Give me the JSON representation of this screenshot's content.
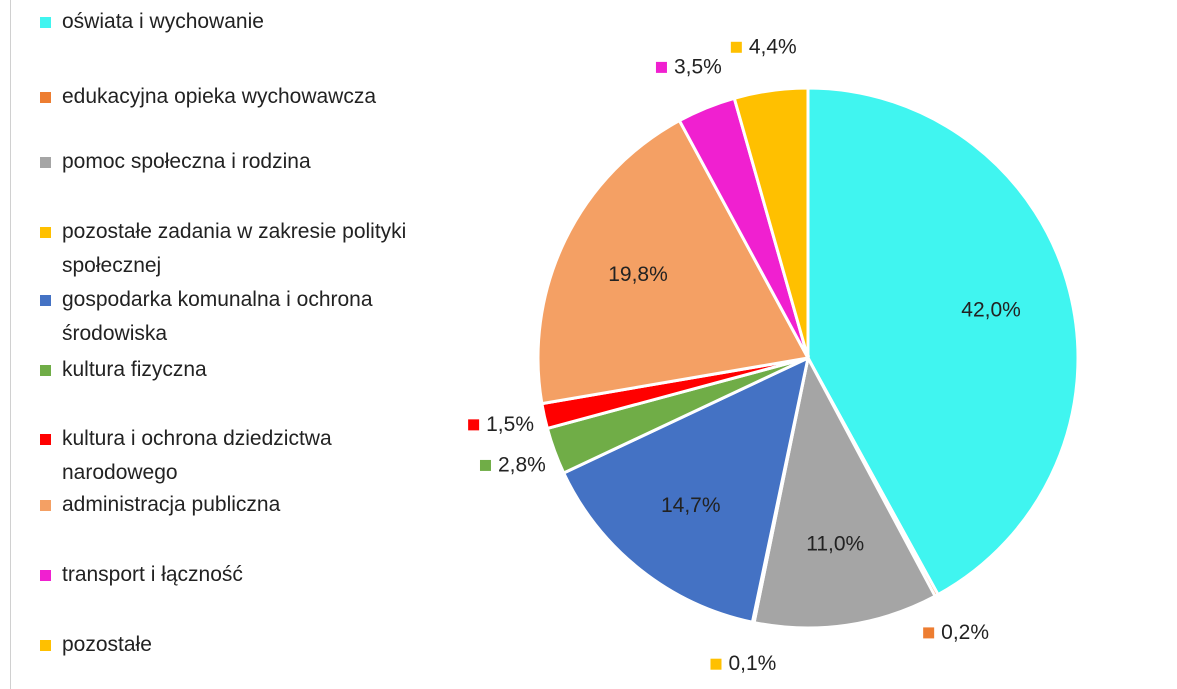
{
  "chart_data": {
    "type": "pie",
    "categories": [
      "oświata i wychowanie",
      "edukacyjna opieka wychowawcza",
      "pomoc społeczna i rodzina",
      "pozostałe zadania w zakresie polityki społecznej",
      "gospodarka komunalna i ochrona środowiska",
      "kultura fizyczna",
      "kultura i ochrona dziedzictwa narodowego",
      "administracja publiczna",
      "transport i łączność",
      "pozostałe"
    ],
    "values": [
      42.0,
      0.2,
      11.0,
      0.1,
      14.7,
      2.8,
      1.5,
      19.8,
      3.5,
      4.4
    ],
    "value_labels": [
      "42,0%",
      "0,2%",
      "11,0%",
      "0,1%",
      "14,7%",
      "2,8%",
      "1,5%",
      "19,8%",
      "3,5%",
      "4,4%"
    ],
    "colors": [
      "#40f5f0",
      "#ed7d31",
      "#a5a5a5",
      "#ffc000",
      "#4472c4",
      "#70ad47",
      "#ff0000",
      "#f4a064",
      "#f020d0",
      "#ffc000"
    ],
    "legend": "left"
  }
}
